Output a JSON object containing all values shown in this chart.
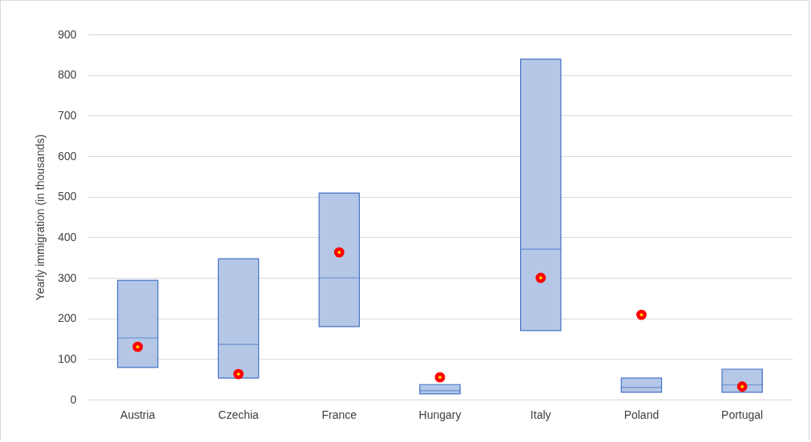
{
  "chart_data": {
    "type": "box",
    "ylabel": "Yearly immigration (in thousands)",
    "categories": [
      "Austria",
      "Czechia",
      "France",
      "Hungary",
      "Italy",
      "Poland",
      "Portugal"
    ],
    "ylim": [
      0,
      900
    ],
    "yticks": [
      0,
      100,
      200,
      300,
      400,
      500,
      600,
      700,
      800,
      900
    ],
    "grid": "y",
    "series": [
      {
        "color": "#b4c7e7",
        "boxes": [
          {
            "low": 79,
            "q1": 79,
            "median": 152,
            "q3": 294,
            "high": 294
          },
          {
            "low": 53,
            "q1": 53,
            "median": 136,
            "q3": 347,
            "high": 347
          },
          {
            "low": 180,
            "q1": 180,
            "median": 300,
            "q3": 509,
            "high": 509
          },
          {
            "low": 14,
            "q1": 14,
            "median": 22,
            "q3": 37,
            "high": 37
          },
          {
            "low": 170,
            "q1": 170,
            "median": 371,
            "q3": 839,
            "high": 839
          },
          {
            "low": 18,
            "q1": 18,
            "median": 30,
            "q3": 53,
            "high": 53
          },
          {
            "low": 18,
            "q1": 18,
            "median": 36,
            "q3": 75,
            "high": 75
          }
        ]
      },
      {
        "type": "scatter",
        "color": "#ff0000",
        "x": [
          "Austria",
          "Czechia",
          "France",
          "Hungary",
          "Italy",
          "Poland",
          "Portugal"
        ],
        "values": [
          130,
          63,
          363,
          55,
          300,
          209,
          32
        ]
      }
    ]
  }
}
